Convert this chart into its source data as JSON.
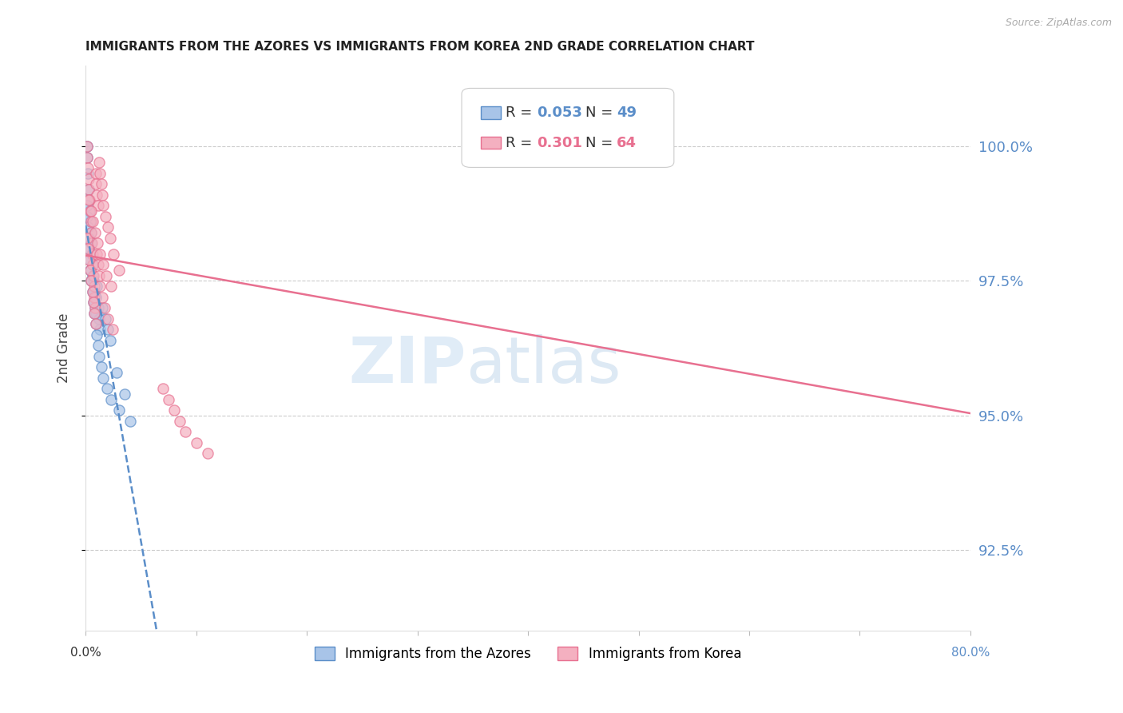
{
  "title": "IMMIGRANTS FROM THE AZORES VS IMMIGRANTS FROM KOREA 2ND GRADE CORRELATION CHART",
  "source": "Source: ZipAtlas.com",
  "ylabel": "2nd Grade",
  "y_ticks": [
    92.5,
    95.0,
    97.5,
    100.0
  ],
  "y_tick_labels": [
    "92.5%",
    "95.0%",
    "97.5%",
    "100.0%"
  ],
  "xlim": [
    0.0,
    80.0
  ],
  "ylim": [
    91.0,
    101.5
  ],
  "azores_r": 0.053,
  "azores_n": 49,
  "korea_r": 0.301,
  "korea_n": 64,
  "legend_label_azores": "Immigrants from the Azores",
  "legend_label_korea": "Immigrants from Korea",
  "color_azores_fill": "#a8c4e8",
  "color_azores_edge": "#5b8ec9",
  "color_korea_fill": "#f4b0c0",
  "color_korea_edge": "#e87090",
  "color_azores_line": "#5b8ec9",
  "color_korea_line": "#e87090",
  "color_right_axis": "#5b8dc8",
  "color_grid": "#cccccc",
  "azores_x": [
    0.1,
    0.15,
    0.2,
    0.25,
    0.3,
    0.35,
    0.4,
    0.45,
    0.5,
    0.55,
    0.6,
    0.65,
    0.7,
    0.75,
    0.8,
    0.85,
    0.9,
    0.95,
    1.0,
    1.1,
    1.2,
    1.3,
    1.5,
    1.8,
    2.0,
    2.2,
    2.8,
    3.5,
    0.1,
    0.15,
    0.2,
    0.25,
    0.3,
    0.35,
    0.4,
    0.5,
    0.6,
    0.7,
    0.8,
    0.9,
    1.0,
    1.1,
    1.2,
    1.4,
    1.6,
    1.9,
    2.3,
    3.0,
    4.0
  ],
  "azores_y": [
    100.0,
    99.8,
    99.5,
    99.2,
    99.0,
    98.8,
    98.6,
    98.4,
    98.2,
    98.0,
    97.8,
    97.6,
    97.5,
    97.3,
    97.1,
    97.0,
    96.9,
    97.2,
    97.4,
    97.0,
    96.8,
    96.6,
    97.0,
    96.8,
    96.6,
    96.4,
    95.8,
    95.4,
    98.9,
    98.7,
    98.5,
    98.3,
    98.1,
    97.9,
    97.7,
    97.5,
    97.3,
    97.1,
    96.9,
    96.7,
    96.5,
    96.3,
    96.1,
    95.9,
    95.7,
    95.5,
    95.3,
    95.1,
    94.9
  ],
  "korea_x": [
    0.1,
    0.15,
    0.2,
    0.25,
    0.3,
    0.35,
    0.4,
    0.45,
    0.5,
    0.55,
    0.6,
    0.65,
    0.7,
    0.75,
    0.8,
    0.85,
    0.9,
    0.95,
    1.0,
    1.1,
    1.2,
    1.3,
    1.4,
    1.5,
    1.6,
    1.8,
    2.0,
    2.2,
    2.5,
    3.0,
    0.1,
    0.2,
    0.3,
    0.4,
    0.5,
    0.6,
    0.7,
    0.8,
    0.9,
    1.0,
    1.1,
    1.2,
    1.3,
    1.5,
    1.7,
    2.0,
    2.4,
    0.25,
    0.45,
    0.65,
    0.85,
    1.05,
    1.25,
    1.55,
    1.85,
    2.3,
    7.0,
    7.5,
    8.0,
    8.5,
    9.0,
    10.0,
    11.0,
    45.0
  ],
  "korea_y": [
    100.0,
    99.8,
    99.6,
    99.4,
    99.2,
    99.0,
    98.8,
    98.6,
    98.4,
    98.2,
    98.0,
    97.8,
    97.6,
    97.4,
    97.2,
    97.0,
    99.5,
    99.3,
    99.1,
    98.9,
    99.7,
    99.5,
    99.3,
    99.1,
    98.9,
    98.7,
    98.5,
    98.3,
    98.0,
    97.7,
    98.3,
    98.1,
    97.9,
    97.7,
    97.5,
    97.3,
    97.1,
    96.9,
    96.7,
    98.0,
    97.8,
    97.6,
    97.4,
    97.2,
    97.0,
    96.8,
    96.6,
    99.0,
    98.8,
    98.6,
    98.4,
    98.2,
    98.0,
    97.8,
    97.6,
    97.4,
    95.5,
    95.3,
    95.1,
    94.9,
    94.7,
    94.5,
    94.3,
    100.0
  ]
}
